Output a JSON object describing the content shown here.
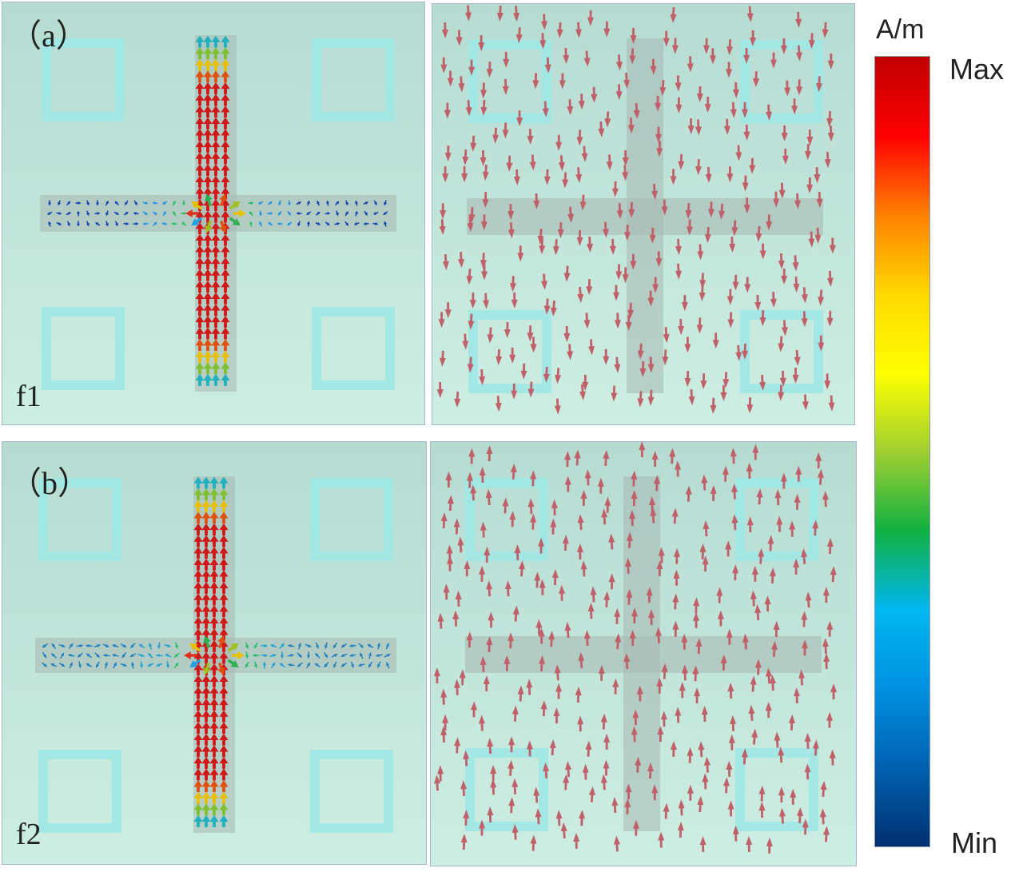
{
  "figure": {
    "row_a": {
      "label": "（a）",
      "freq_label": "f1",
      "field_direction": "down",
      "arm_vertical_peak": "max",
      "arm_horizontal_level": "low"
    },
    "row_b": {
      "label": "（b）",
      "freq_label": "f2",
      "field_direction": "up",
      "arm_vertical_peak": "max",
      "arm_horizontal_level": "low"
    }
  },
  "colorbar": {
    "unit": "A/m",
    "max_label": "Max",
    "min_label": "Min",
    "stops": [
      "#c00000",
      "#ff0000",
      "#ff8000",
      "#ffd800",
      "#ffff00",
      "#a0d030",
      "#10b040",
      "#00b8f0",
      "#0090e0",
      "#0060b0",
      "#003070"
    ]
  },
  "colors": {
    "substrate": "#c4e8dc",
    "ring": "#9fe8e4",
    "cross": "#a6b8b2",
    "field_arrow": "#c0606a"
  }
}
